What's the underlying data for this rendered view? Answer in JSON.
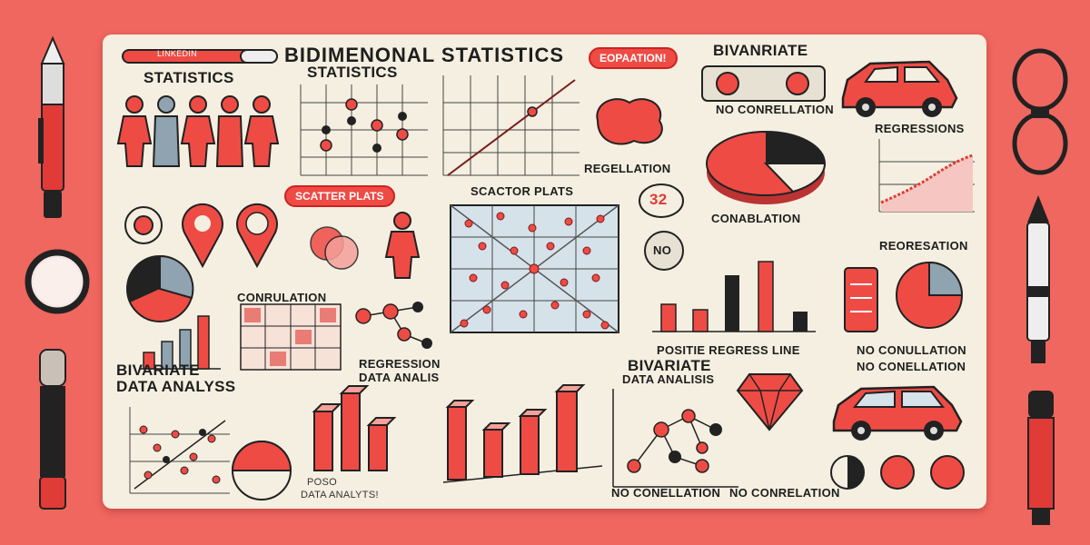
{
  "labels": {
    "main_title": "BIDIMENONAL STATISTICS",
    "sub_title": "STATISTICS",
    "left_header": "STATISTICS",
    "pill_left": "SCATTER PLATS",
    "pill_top": "EOPAATION!",
    "scatter_caption": "SCACTOR PLATS",
    "bivariate_top": "BIVANRIATE",
    "no_correlation_top": "NO CONRELLATION",
    "regressions": "REGRESSIONS",
    "regellation": "REGELLATION",
    "conablation": "CONABLATION",
    "no_badge": "NO",
    "number_badge": "32",
    "reoresation": "REORESATION",
    "corrulation": "CONRULATION",
    "positie_line": "POSITIE REGRESS LINE",
    "regression_data": "REGRESSION",
    "data_analis_small": "DATA ANALIS",
    "bivariate_left": "BIVARIATE",
    "data_analysis_left": "DATA ANALYSS",
    "bivariate_mid": "BIVARIATE",
    "data_analysis_mid": "DATA ANALISIS",
    "no_conullation": "NO CONULLATION",
    "no_conellation": "NO CONELLATION",
    "no_conellation_bottom": "NO CONELLATION",
    "no_conrelation_bottom": "NO CONRELATION",
    "poso": "POSO",
    "data_analyts": "DATA ANALYTS!",
    "sticker_left": "LINKEDIN"
  },
  "colors": {
    "background": "#f0675f",
    "board": "#f4efe0",
    "accent": "#ef4b45",
    "dark": "#1e1e1e"
  },
  "icons": [
    "pen-icon",
    "magnifier-icon",
    "glasses-icon",
    "marker-icon",
    "person-icon",
    "map-pin-icon",
    "car-icon",
    "gem-icon",
    "pie-chart-icon"
  ]
}
